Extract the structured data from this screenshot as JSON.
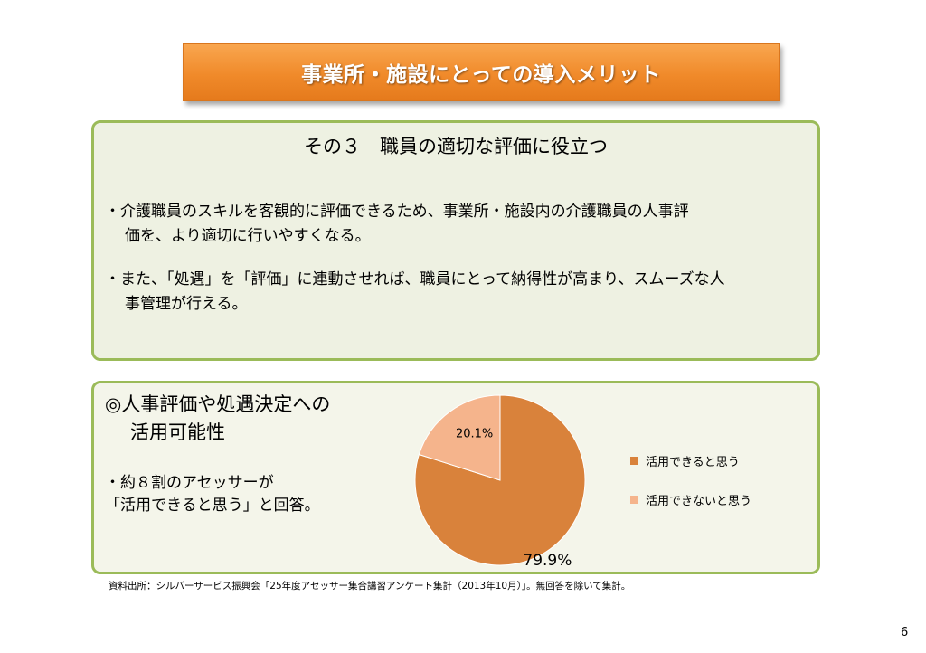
{
  "banner": {
    "title": "事業所・施設にとっての導入メリット"
  },
  "section1": {
    "title": "その３　職員の適切な評価に役立つ",
    "bullet1_line1": "・介護職員のスキルを客観的に評価できるため、事業所・施設内の介護職員の人事評",
    "bullet1_line2": "価を、より適切に行いやすくなる。",
    "bullet2_line1": "・また、「処遇」を「評価」に連動させれば、職員にとって納得性が高まり、スムーズな人",
    "bullet2_line2": "事管理が行える。"
  },
  "section2": {
    "heading_line1": "◎人事評価や処遇決定への",
    "heading_line2": "活用可能性",
    "bullet_line1": "・約８割のアセッサーが",
    "bullet_line2": "「活用できると思う」と回答。"
  },
  "chart_data": {
    "type": "pie",
    "categories": [
      "活用できると思う",
      "活用できないと思う"
    ],
    "values": [
      79.9,
      20.1
    ],
    "data_labels": [
      "79.9%",
      "20.1%"
    ],
    "colors": [
      "#d9823b",
      "#f5b48c"
    ],
    "legend_position": "right"
  },
  "source": "資料出所：シルバーサービス振興会「25年度アセッサー集合講習アンケート集計（2013年10月）」。無回答を除いて集計。",
  "page_number": "6"
}
